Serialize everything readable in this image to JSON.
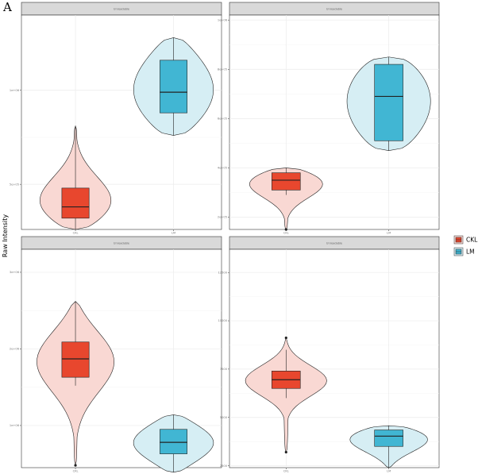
{
  "figure": {
    "panel_label": "A",
    "ylabel": "Raw Intensity"
  },
  "legend": {
    "items": [
      {
        "label": "CKL",
        "fill": "#E8472E",
        "violin_fill": "#F9D8D3"
      },
      {
        "label": "LM",
        "fill": "#41B6D3",
        "violin_fill": "#D6EEF4"
      }
    ]
  },
  "chart_data": [
    {
      "type": "violin-box",
      "strip_title": "Unreadable",
      "categories": [
        "CKL",
        "LM"
      ],
      "y_tick_labels": [
        "5e+05",
        "1e+06"
      ],
      "y_ticks": [
        50,
        100
      ],
      "ylim": [
        26,
        140
      ],
      "grid": true,
      "groups": [
        {
          "name": "CKL",
          "violin_min": 26,
          "violin_max": 81,
          "q1": 32,
          "median": 38,
          "q3": 48,
          "whisker_low": 26,
          "whisker_high": 81,
          "outliers": []
        },
        {
          "name": "LM",
          "violin_min": 76,
          "violin_max": 128,
          "q1": 88,
          "median": 99,
          "q3": 116,
          "whisker_low": 76,
          "whisker_high": 128,
          "outliers": []
        }
      ]
    },
    {
      "type": "violin-box",
      "strip_title": "Unreadable",
      "categories": [
        "CKL",
        "LM"
      ],
      "y_tick_labels": [
        "2e+05",
        "4e+05",
        "6e+05",
        "8e+05",
        "1e+06"
      ],
      "y_ticks": [
        20,
        40,
        60,
        80,
        100
      ],
      "ylim": [
        15,
        102
      ],
      "grid": true,
      "groups": [
        {
          "name": "CKL",
          "violin_min": 15,
          "violin_max": 40,
          "q1": 31,
          "median": 35,
          "q3": 38,
          "whisker_low": 29,
          "whisker_high": 40,
          "outliers": [
            15
          ]
        },
        {
          "name": "LM",
          "violin_min": 47,
          "violin_max": 85,
          "q1": 51,
          "median": 69,
          "q3": 82,
          "whisker_low": 47,
          "whisker_high": 85,
          "outliers": []
        }
      ]
    },
    {
      "type": "violin-box",
      "strip_title": "Unreadable",
      "categories": [
        "CKL",
        "LM"
      ],
      "y_tick_labels": [
        "1e+06",
        "2e+06",
        "3e+06"
      ],
      "y_ticks": [
        10,
        20,
        30
      ],
      "ylim": [
        4.5,
        33
      ],
      "grid": true,
      "groups": [
        {
          "name": "CKL",
          "violin_min": 4.8,
          "violin_max": 26.2,
          "q1": 16.3,
          "median": 18.7,
          "q3": 20.9,
          "whisker_low": 15.2,
          "whisker_high": 26.2,
          "outliers": [
            4.8
          ]
        },
        {
          "name": "LM",
          "violin_min": 3.9,
          "violin_max": 11.4,
          "q1": 6.3,
          "median": 7.8,
          "q3": 9.5,
          "whisker_low": 3.9,
          "whisker_high": 11.4,
          "outliers": []
        }
      ]
    },
    {
      "type": "violin-box",
      "strip_title": "Unreadable",
      "categories": [
        "CKL",
        "LM"
      ],
      "y_tick_labels": [
        "2500",
        "5000",
        "7500",
        "10000",
        "12500"
      ],
      "y_ticks": [
        2500,
        5000,
        7500,
        10000,
        12500
      ],
      "ylim": [
        2400,
        13700
      ],
      "grid": true,
      "groups": [
        {
          "name": "CKL",
          "violin_min": 3200,
          "violin_max": 9120,
          "q1": 6500,
          "median": 6950,
          "q3": 7400,
          "whisker_low": 6000,
          "whisker_high": 8500,
          "outliers": [
            3200,
            9120
          ]
        },
        {
          "name": "LM",
          "violin_min": 2400,
          "violin_max": 4570,
          "q1": 3500,
          "median": 4030,
          "q3": 4350,
          "whisker_low": 2400,
          "whisker_high": 4570,
          "outliers": []
        }
      ]
    }
  ]
}
